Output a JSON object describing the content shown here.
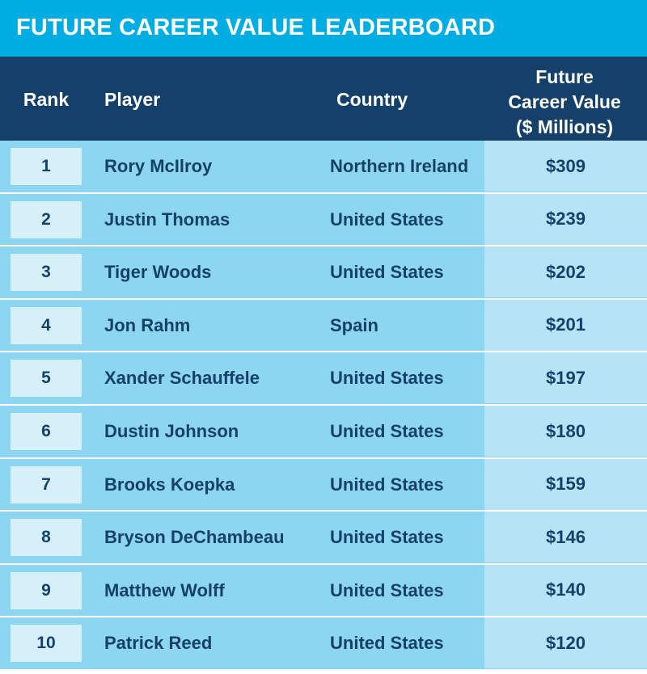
{
  "title": "FUTURE CAREER VALUE LEADERBOARD",
  "headers": {
    "rank": "Rank",
    "player": "Player",
    "country": "Country",
    "value_line1": "Future",
    "value_line2": "Career Value",
    "value_line3": "($ Millions)"
  },
  "colors": {
    "title_bar": "#00ade2",
    "header_bg": "#14406a",
    "row_bg": "#8dd6f1",
    "rank_box_bg": "#d6f0fa",
    "value_cell_bg": "#b6e4f6",
    "text_dark": "#14406a"
  },
  "chart_data": {
    "type": "table",
    "title": "FUTURE CAREER VALUE LEADERBOARD",
    "columns": [
      "Rank",
      "Player",
      "Country",
      "Future Career Value ($ Millions)"
    ],
    "rows": [
      {
        "rank": "1",
        "player": "Rory McIlroy",
        "country": "Northern Ireland",
        "value": "$309"
      },
      {
        "rank": "2",
        "player": "Justin Thomas",
        "country": "United States",
        "value": "$239"
      },
      {
        "rank": "3",
        "player": "Tiger Woods",
        "country": "United States",
        "value": "$202"
      },
      {
        "rank": "4",
        "player": "Jon Rahm",
        "country": "Spain",
        "value": "$201"
      },
      {
        "rank": "5",
        "player": "Xander Schauffele",
        "country": "United States",
        "value": "$197"
      },
      {
        "rank": "6",
        "player": "Dustin Johnson",
        "country": "United States",
        "value": "$180"
      },
      {
        "rank": "7",
        "player": "Brooks Koepka",
        "country": "United States",
        "value": "$159"
      },
      {
        "rank": "8",
        "player": "Bryson DeChambeau",
        "country": "United States",
        "value": "$146"
      },
      {
        "rank": "9",
        "player": "Matthew Wolff",
        "country": "United States",
        "value": "$140"
      },
      {
        "rank": "10",
        "player": "Patrick Reed",
        "country": "United States",
        "value": "$120"
      }
    ]
  }
}
